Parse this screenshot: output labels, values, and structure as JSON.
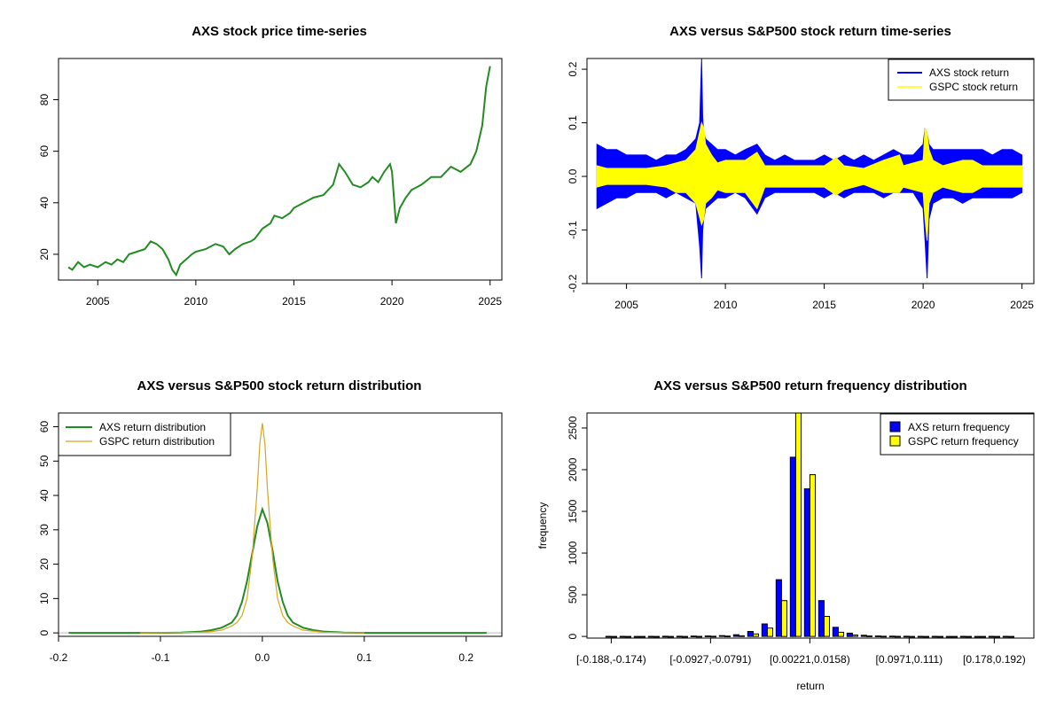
{
  "chart_data": [
    {
      "id": "price",
      "type": "line",
      "title": "AXS stock price time-series",
      "xlabel": "",
      "ylabel": "",
      "xlim": [
        2003.0,
        2025.6
      ],
      "ylim": [
        10,
        96
      ],
      "xticks": [
        2005,
        2010,
        2015,
        2020,
        2025
      ],
      "xtick_labels": [
        "2005",
        "2010",
        "2015",
        "2020",
        "2025"
      ],
      "yticks": [
        20,
        40,
        60,
        80
      ],
      "ytick_labels": [
        "20",
        "40",
        "60",
        "80"
      ],
      "series": [
        {
          "color": "#228B22",
          "x": [
            2003.5,
            2003.7,
            2004.0,
            2004.3,
            2004.6,
            2005.0,
            2005.4,
            2005.7,
            2006.0,
            2006.3,
            2006.6,
            2007.0,
            2007.4,
            2007.7,
            2008.0,
            2008.3,
            2008.6,
            2008.8,
            2009.0,
            2009.2,
            2009.5,
            2009.8,
            2010.0,
            2010.5,
            2011.0,
            2011.4,
            2011.7,
            2012.0,
            2012.4,
            2012.8,
            2013.0,
            2013.4,
            2013.8,
            2014.0,
            2014.4,
            2014.8,
            2015.0,
            2015.5,
            2016.0,
            2016.5,
            2017.0,
            2017.3,
            2017.6,
            2018.0,
            2018.4,
            2018.8,
            2019.0,
            2019.3,
            2019.6,
            2019.9,
            2020.0,
            2020.2,
            2020.4,
            2020.7,
            2021.0,
            2021.5,
            2022.0,
            2022.5,
            2023.0,
            2023.5,
            2024.0,
            2024.3,
            2024.6,
            2024.8,
            2025.0
          ],
          "values": [
            15,
            14,
            17,
            15,
            16,
            15,
            17,
            16,
            18,
            17,
            20,
            21,
            22,
            25,
            24,
            22,
            18,
            14,
            12,
            16,
            18,
            20,
            21,
            22,
            24,
            23,
            20,
            22,
            24,
            25,
            26,
            30,
            32,
            35,
            34,
            36,
            38,
            40,
            42,
            43,
            47,
            55,
            52,
            47,
            46,
            48,
            50,
            48,
            52,
            55,
            52,
            32,
            38,
            42,
            45,
            47,
            50,
            50,
            54,
            52,
            55,
            60,
            70,
            85,
            93
          ]
        }
      ]
    },
    {
      "id": "returns",
      "type": "line",
      "title": "AXS versus S&P500 stock return time-series",
      "xlabel": "",
      "ylabel": "",
      "xlim": [
        2003.0,
        2025.6
      ],
      "ylim": [
        -0.2,
        0.22
      ],
      "xticks": [
        2005,
        2010,
        2015,
        2020,
        2025
      ],
      "xtick_labels": [
        "2005",
        "2010",
        "2015",
        "2020",
        "2025"
      ],
      "yticks": [
        -0.2,
        -0.1,
        0.0,
        0.1,
        0.2
      ],
      "ytick_labels": [
        "-0.2",
        "-0.1",
        "0.0",
        "0.1",
        "0.2"
      ],
      "legend": "top-right",
      "series": [
        {
          "name": "AXS stock return",
          "color": "#0000FF",
          "x": [
            2003.5,
            2004.0,
            2004.5,
            2005.0,
            2005.5,
            2006.0,
            2006.5,
            2007.0,
            2007.5,
            2008.0,
            2008.5,
            2008.7,
            2008.8,
            2008.85,
            2008.9,
            2009.0,
            2009.3,
            2009.6,
            2010.0,
            2010.5,
            2011.0,
            2011.6,
            2012.0,
            2012.5,
            2013.0,
            2013.5,
            2014.0,
            2014.5,
            2015.0,
            2015.5,
            2016.0,
            2016.5,
            2017.0,
            2017.5,
            2018.0,
            2018.5,
            2019.0,
            2019.5,
            2020.0,
            2020.1,
            2020.2,
            2020.3,
            2020.5,
            2021.0,
            2021.5,
            2022.0,
            2022.5,
            2023.0,
            2023.5,
            2024.0,
            2024.5,
            2025.0
          ],
          "lower": [
            -0.06,
            -0.05,
            -0.04,
            -0.04,
            -0.03,
            -0.03,
            -0.03,
            -0.04,
            -0.03,
            -0.04,
            -0.05,
            -0.13,
            -0.19,
            -0.1,
            -0.08,
            -0.06,
            -0.05,
            -0.04,
            -0.04,
            -0.03,
            -0.04,
            -0.07,
            -0.04,
            -0.03,
            -0.03,
            -0.03,
            -0.03,
            -0.03,
            -0.04,
            -0.03,
            -0.04,
            -0.03,
            -0.03,
            -0.03,
            -0.04,
            -0.03,
            -0.03,
            -0.03,
            -0.06,
            -0.12,
            -0.19,
            -0.08,
            -0.05,
            -0.04,
            -0.04,
            -0.05,
            -0.04,
            -0.04,
            -0.04,
            -0.04,
            -0.04,
            -0.03
          ],
          "upper": [
            0.06,
            0.05,
            0.05,
            0.04,
            0.04,
            0.04,
            0.03,
            0.04,
            0.04,
            0.05,
            0.07,
            0.1,
            0.22,
            0.11,
            0.08,
            0.07,
            0.06,
            0.05,
            0.05,
            0.04,
            0.05,
            0.06,
            0.04,
            0.03,
            0.04,
            0.03,
            0.03,
            0.03,
            0.04,
            0.03,
            0.04,
            0.03,
            0.04,
            0.03,
            0.04,
            0.05,
            0.04,
            0.04,
            0.06,
            0.09,
            0.08,
            0.06,
            0.05,
            0.05,
            0.05,
            0.05,
            0.05,
            0.05,
            0.04,
            0.05,
            0.05,
            0.04
          ]
        },
        {
          "name": "GSPC stock return",
          "color": "#FFFF00",
          "x": [
            2003.5,
            2004.0,
            2005.0,
            2006.0,
            2007.0,
            2007.5,
            2008.0,
            2008.5,
            2008.8,
            2008.9,
            2009.0,
            2009.3,
            2009.6,
            2010.0,
            2011.0,
            2011.6,
            2012.0,
            2013.0,
            2014.0,
            2015.0,
            2015.6,
            2016.0,
            2017.0,
            2018.0,
            2018.8,
            2019.0,
            2020.0,
            2020.1,
            2020.2,
            2020.3,
            2020.5,
            2021.0,
            2022.0,
            2022.5,
            2023.0,
            2024.0,
            2025.0
          ],
          "lower": [
            -0.02,
            -0.015,
            -0.015,
            -0.015,
            -0.02,
            -0.03,
            -0.03,
            -0.05,
            -0.09,
            -0.08,
            -0.05,
            -0.04,
            -0.025,
            -0.03,
            -0.03,
            -0.06,
            -0.02,
            -0.02,
            -0.02,
            -0.02,
            -0.035,
            -0.025,
            -0.015,
            -0.03,
            -0.03,
            -0.02,
            -0.03,
            -0.08,
            -0.12,
            -0.05,
            -0.03,
            -0.02,
            -0.03,
            -0.03,
            -0.02,
            -0.02,
            -0.02
          ],
          "upper": [
            0.02,
            0.015,
            0.015,
            0.015,
            0.02,
            0.025,
            0.03,
            0.05,
            0.1,
            0.09,
            0.06,
            0.04,
            0.025,
            0.03,
            0.03,
            0.045,
            0.02,
            0.02,
            0.02,
            0.02,
            0.035,
            0.02,
            0.015,
            0.03,
            0.04,
            0.02,
            0.03,
            0.09,
            0.08,
            0.05,
            0.03,
            0.02,
            0.03,
            0.03,
            0.02,
            0.02,
            0.02
          ]
        }
      ]
    },
    {
      "id": "density",
      "type": "line",
      "title": "AXS versus S&P500 stock return distribution",
      "xlabel": "",
      "ylabel": "",
      "xlim": [
        -0.2,
        0.235
      ],
      "ylim": [
        -1,
        64
      ],
      "xticks": [
        -0.2,
        -0.1,
        0.0,
        0.1,
        0.2
      ],
      "xtick_labels": [
        "-0.2",
        "-0.1",
        "0.0",
        "0.1",
        "0.2"
      ],
      "yticks": [
        0,
        10,
        20,
        30,
        40,
        50,
        60
      ],
      "ytick_labels": [
        "0",
        "10",
        "20",
        "30",
        "40",
        "50",
        "60"
      ],
      "legend": "top-left",
      "series": [
        {
          "name": "AXS return distribution",
          "color": "#228B22",
          "x": [
            -0.19,
            -0.1,
            -0.08,
            -0.06,
            -0.05,
            -0.04,
            -0.03,
            -0.025,
            -0.02,
            -0.015,
            -0.01,
            -0.005,
            0.0,
            0.005,
            0.01,
            0.015,
            0.02,
            0.025,
            0.03,
            0.04,
            0.05,
            0.06,
            0.08,
            0.1,
            0.22
          ],
          "values": [
            0,
            0,
            0.1,
            0.4,
            0.8,
            1.5,
            3,
            5,
            9,
            15,
            23,
            31,
            36,
            32,
            24,
            15,
            9,
            5,
            3,
            1.5,
            0.8,
            0.4,
            0.1,
            0,
            0
          ]
        },
        {
          "name": "GSPC return distribution",
          "color": "#DAA520",
          "x": [
            -0.12,
            -0.08,
            -0.06,
            -0.05,
            -0.04,
            -0.03,
            -0.025,
            -0.02,
            -0.015,
            -0.01,
            -0.005,
            -0.0025,
            0.0,
            0.0025,
            0.005,
            0.01,
            0.015,
            0.02,
            0.025,
            0.03,
            0.04,
            0.06,
            0.1
          ],
          "values": [
            0,
            0.1,
            0.2,
            0.4,
            0.8,
            2,
            3,
            5,
            10,
            22,
            42,
            55,
            61,
            55,
            42,
            22,
            10,
            5,
            3,
            2,
            0.8,
            0.2,
            0
          ]
        }
      ]
    },
    {
      "id": "frequency",
      "type": "bar",
      "title": "AXS versus S&P500 return frequency distribution",
      "xlabel": "return",
      "ylabel": "frequency",
      "ylim": [
        -20,
        2680
      ],
      "yticks": [
        0,
        500,
        1000,
        1500,
        2000,
        2500
      ],
      "ytick_labels": [
        "0",
        "500",
        "1000",
        "1500",
        "2000",
        "2500"
      ],
      "category_tick_labels": [
        "[-0.188,-0.174)",
        "[-0.0927,-0.0791)",
        "[0.00221,0.0158)",
        "[0.0971,0.111)",
        "[0.178,0.192)"
      ],
      "category_tick_index": [
        0,
        7,
        14,
        21,
        27
      ],
      "legend": "top-right",
      "series": [
        {
          "name": "AXS return frequency",
          "color": "#0000FF",
          "values": [
            1,
            1,
            0,
            1,
            2,
            2,
            4,
            6,
            10,
            20,
            60,
            150,
            680,
            2150,
            1770,
            430,
            110,
            40,
            14,
            6,
            3,
            2,
            1,
            1,
            0,
            1,
            0,
            1,
            1
          ]
        },
        {
          "name": "GSPC return frequency",
          "color": "#FFFF00",
          "values": [
            0,
            0,
            0,
            0,
            0,
            0,
            1,
            2,
            4,
            8,
            30,
            100,
            430,
            2700,
            1940,
            240,
            50,
            16,
            6,
            2,
            1,
            0,
            0,
            0,
            0,
            0,
            0,
            0,
            0
          ]
        }
      ]
    }
  ]
}
